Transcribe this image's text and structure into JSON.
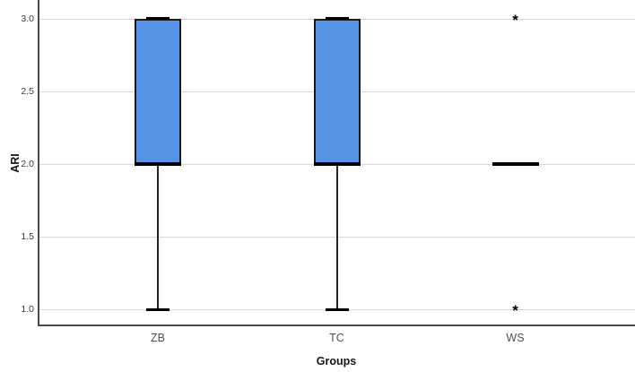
{
  "chart_data": {
    "type": "boxplot",
    "title": "",
    "xlabel": "Groups",
    "ylabel": "ARI",
    "categories": [
      "ZB",
      "TC",
      "WS"
    ],
    "y_ticks": [
      1.0,
      1.5,
      2.0,
      2.5,
      3.0
    ],
    "y_tick_labels": [
      "1.0",
      "1.5",
      "2.0",
      "2.5",
      "3.0"
    ],
    "ylim": [
      0.89,
      3.13
    ],
    "grid": "horizontal-only",
    "legend": "none",
    "outlier_marker": "*",
    "series": [
      {
        "category": "ZB",
        "q1": 2.0,
        "median": 2.0,
        "q3": 3.0,
        "whisker_low": 1.0,
        "whisker_high": 3.0,
        "extreme_outliers": []
      },
      {
        "category": "TC",
        "q1": 2.0,
        "median": 2.0,
        "q3": 3.0,
        "whisker_low": 1.0,
        "whisker_high": 3.0,
        "extreme_outliers": []
      },
      {
        "category": "WS",
        "q1": 2.0,
        "median": 2.0,
        "q3": 2.0,
        "whisker_low": 2.0,
        "whisker_high": 2.0,
        "extreme_outliers": [
          3.0,
          1.0
        ]
      }
    ],
    "colors": {
      "box_fill": "#5694e6",
      "box_border": "#1a1a1a",
      "median": "#000000",
      "whisker": "#222222",
      "gridline": "#d8d8d8",
      "axis": "#4a4a4a",
      "tick_label": "#3a3a3a",
      "category_label": "#4f4f4f",
      "axis_title": "#161616"
    }
  }
}
